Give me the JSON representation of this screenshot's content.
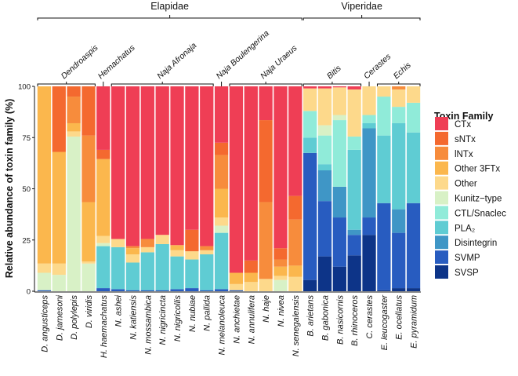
{
  "chart_data": {
    "type": "bar",
    "stacked": true,
    "ylabel": "Relative abundance of toxin family (%)",
    "xlabel": "",
    "ylim": [
      0,
      100
    ],
    "yticks": [
      "0",
      "25",
      "50",
      "75",
      "100"
    ],
    "grid": false,
    "legend": {
      "title": "Toxin Family",
      "placement": "right"
    },
    "series": [
      {
        "name": "CTx",
        "color": "#ef3e55"
      },
      {
        "name": "sNTx",
        "color": "#f4692f"
      },
      {
        "name": "lNTx",
        "color": "#f78c3c"
      },
      {
        "name": "Other 3FTx",
        "color": "#fbb74d"
      },
      {
        "name": "Other",
        "color": "#fdd98b"
      },
      {
        "name": "Kunitz−type",
        "color": "#d8f1c6"
      },
      {
        "name": "CTL/Snaclec",
        "color": "#90ebd9"
      },
      {
        "name": "PLA₂",
        "color": "#5fccd3"
      },
      {
        "name": "Disintegrin",
        "color": "#3f96c6"
      },
      {
        "name": "SVMP",
        "color": "#285cc0"
      },
      {
        "name": "SVSP",
        "color": "#0d3488"
      }
    ],
    "categories": [
      "D. angusticeps",
      "D. jamesoni",
      "D. polylepis",
      "D. viridis",
      "H. haemachatus",
      "N. ashei",
      "N. katiensis",
      "N. mossambica",
      "N. nigricincta",
      "N. nigricollis",
      "N. nubiae",
      "N. pallida",
      "N. melanoleuca",
      "N. anchietae",
      "N. annulifera",
      "N. haje",
      "N. nivea",
      "N. senegalensis",
      "B. arietans",
      "B. gabonica",
      "B. nasicornis",
      "B. rhinoceros",
      "C. cerastes",
      "E. leucogaster",
      "E. ocellatus",
      "E. pyramidum"
    ],
    "values": [
      [
        0,
        0,
        0,
        86.5,
        4.5,
        8.5,
        0,
        0,
        0,
        0.5,
        0
      ],
      [
        0,
        32,
        0,
        54.5,
        5.5,
        8,
        0,
        0,
        0,
        0,
        0
      ],
      [
        0,
        5,
        13,
        4,
        2.5,
        75.5,
        0,
        0,
        0,
        0,
        0
      ],
      [
        0,
        24,
        32.5,
        29,
        1,
        13.5,
        0,
        0,
        0,
        0,
        0
      ],
      [
        31,
        4.5,
        0,
        37.5,
        3.5,
        1.5,
        0,
        20.5,
        0,
        1.5,
        0
      ],
      [
        74.5,
        0,
        0,
        0,
        4,
        0,
        0,
        20.5,
        0,
        1,
        0
      ],
      [
        78,
        0,
        1,
        3,
        4,
        0,
        0,
        13.5,
        0,
        0.5,
        0
      ],
      [
        74.5,
        0,
        4,
        0,
        2.5,
        0,
        0,
        18.5,
        0,
        0.5,
        0
      ],
      [
        72.5,
        0,
        0,
        0,
        4.5,
        0,
        0,
        22.5,
        0,
        0.5,
        0
      ],
      [
        77.5,
        0,
        0,
        2.5,
        3,
        0,
        0,
        16,
        0,
        1,
        0
      ],
      [
        70,
        10.5,
        0,
        0,
        4,
        0,
        0,
        14,
        0,
        1.5,
        0
      ],
      [
        78,
        0,
        2,
        0,
        2,
        0,
        0,
        17.5,
        0,
        0.5,
        0
      ],
      [
        27.5,
        6,
        16.5,
        14,
        4,
        3.5,
        0,
        27.5,
        0,
        1,
        0
      ],
      [
        91,
        0,
        0,
        5.5,
        3,
        0,
        0,
        0,
        0,
        0.5,
        0
      ],
      [
        85,
        6,
        0,
        4.5,
        4.5,
        0,
        0,
        0,
        0,
        0,
        0
      ],
      [
        16.5,
        40,
        37.5,
        0,
        6,
        0,
        0,
        0,
        0,
        0,
        0
      ],
      [
        79,
        5.5,
        3.5,
        4.5,
        2,
        5.5,
        0,
        0,
        0,
        0,
        0
      ],
      [
        53.5,
        11.5,
        22.5,
        5.5,
        7,
        0,
        0,
        0,
        0,
        0,
        0
      ],
      [
        1,
        0,
        0,
        0,
        11,
        0,
        13,
        7.5,
        0,
        62,
        5.5
      ],
      [
        1,
        0,
        0,
        0,
        18,
        5,
        14,
        3,
        15,
        27,
        17
      ],
      [
        0.5,
        0,
        0,
        0,
        13.5,
        2.5,
        32.5,
        0,
        15,
        24,
        12
      ],
      [
        1.5,
        0,
        0,
        0,
        23,
        0,
        6.5,
        39,
        2.5,
        10,
        17.5
      ],
      [
        0,
        0,
        0,
        0,
        14,
        0,
        4,
        2.5,
        43.5,
        8.5,
        27.5
      ],
      [
        0,
        0,
        0,
        0,
        5,
        0,
        19,
        33,
        0,
        42.5,
        0.5
      ],
      [
        0,
        0,
        1.5,
        0,
        8.5,
        0,
        8,
        42,
        11.5,
        27,
        1.5
      ],
      [
        0,
        0,
        0,
        0,
        8,
        0,
        14.5,
        34.5,
        0,
        41.5,
        1.5
      ]
    ],
    "families": [
      {
        "name": "Elapidae",
        "first": 0,
        "last": 17
      },
      {
        "name": "Viperidae",
        "first": 18,
        "last": 25
      }
    ],
    "genera": [
      {
        "name": "Dendroaspis",
        "first": 0,
        "last": 3
      },
      {
        "name": "Hemachatus",
        "first": 4,
        "last": 4
      },
      {
        "name": "Naja Afronaja",
        "first": 5,
        "last": 11
      },
      {
        "name": "Naja Boulengerina",
        "first": 12,
        "last": 12
      },
      {
        "name": "Naja Uraeus",
        "first": 13,
        "last": 17
      },
      {
        "name": "Bitis",
        "first": 18,
        "last": 21
      },
      {
        "name": "Cerastes",
        "first": 22,
        "last": 22
      },
      {
        "name": "Echis",
        "first": 23,
        "last": 25
      }
    ]
  }
}
